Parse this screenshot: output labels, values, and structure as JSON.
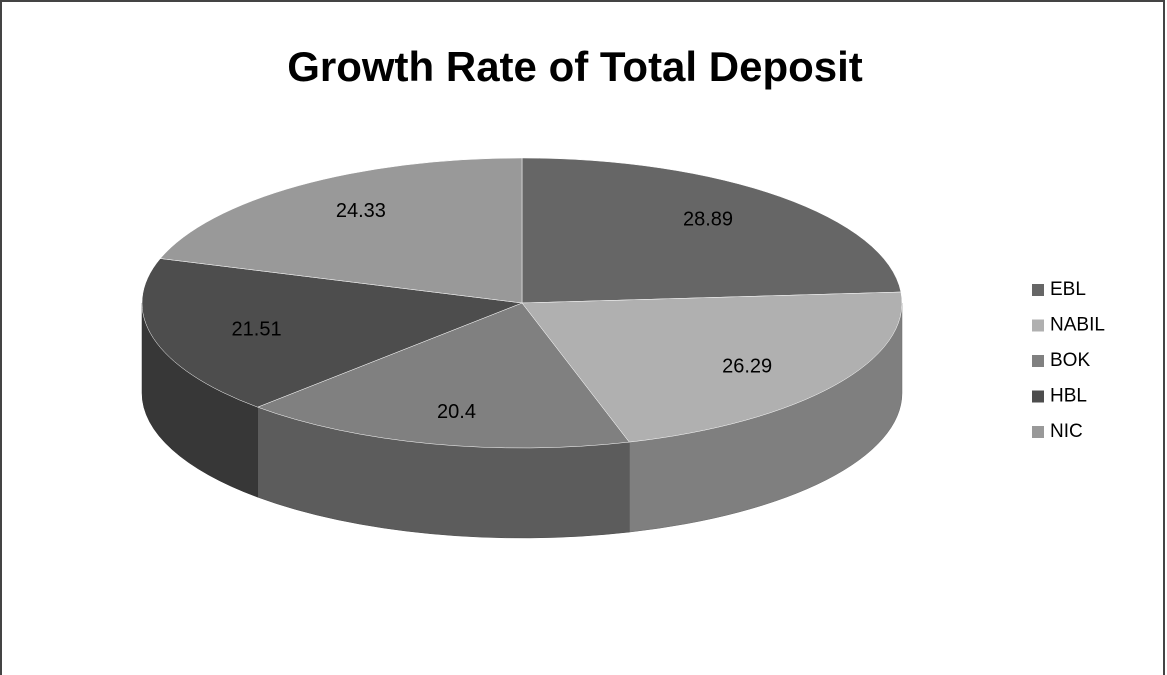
{
  "chart_data": {
    "type": "pie",
    "title": "Growth Rate of Total Deposit",
    "categories": [
      "EBL",
      "NABIL",
      "BOK",
      "HBL",
      "NIC"
    ],
    "values": [
      28.89,
      26.29,
      20.4,
      21.51,
      24.33
    ],
    "colors": [
      "#666666",
      "#b0b0b0",
      "#808080",
      "#4d4d4d",
      "#999999"
    ],
    "legend": "right"
  }
}
